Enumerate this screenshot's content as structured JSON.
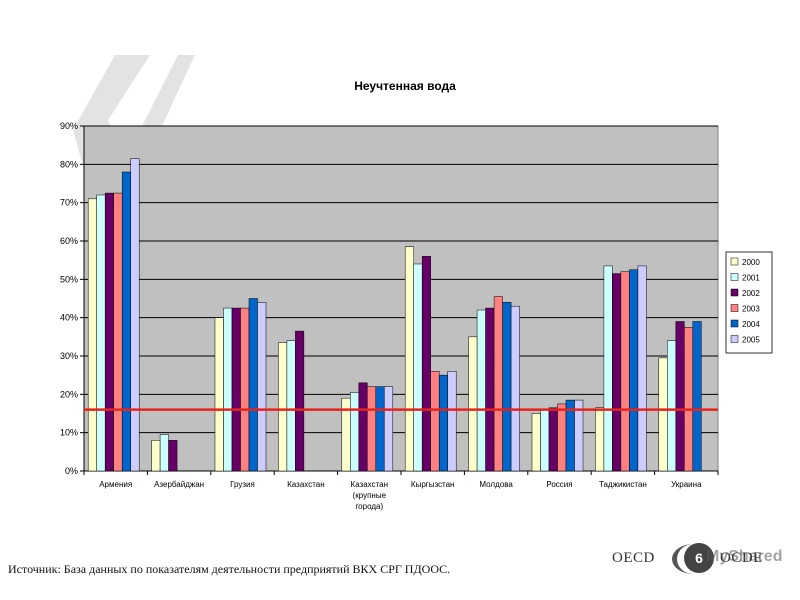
{
  "colors": {
    "plot_bg": "#c0c0c0",
    "gridline": "#000000",
    "threshold_line": "#e8231c",
    "decor_quote": "#e3e3e3"
  },
  "source_text": "Источник: База данных по показателям деятельности предприятий ВКХ СРГ ПДООС.",
  "footer": {
    "logo_left": "OECD",
    "logo_right": "OCDE",
    "page_number": "6",
    "watermark": "MyShared"
  },
  "chart_data": {
    "type": "bar",
    "title": "Неучтенная вода",
    "xlabel": "",
    "ylabel": "",
    "ylim": [
      0,
      90
    ],
    "y_ticks": [
      "0%",
      "10%",
      "20%",
      "30%",
      "40%",
      "50%",
      "60%",
      "70%",
      "80%",
      "90%"
    ],
    "grid": true,
    "legend_position": "right",
    "categories": [
      [
        "Армения"
      ],
      [
        "Азербайджан"
      ],
      [
        "Грузия"
      ],
      [
        "Казахстан"
      ],
      [
        "Казахстан",
        "(крупные",
        "города)"
      ],
      [
        "Кыргызстан"
      ],
      [
        "Молдова"
      ],
      [
        "Россия"
      ],
      [
        "Таджикистан"
      ],
      [
        "Украина"
      ]
    ],
    "series": [
      {
        "name": "2000",
        "color": "#ffffcc",
        "values": [
          71,
          8,
          40,
          33.5,
          19,
          58.5,
          35,
          15,
          16.5,
          29.5
        ]
      },
      {
        "name": "2001",
        "color": "#ccffff",
        "values": [
          72,
          9.5,
          42.5,
          34,
          20.5,
          54,
          42,
          16,
          53.5,
          34
        ]
      },
      {
        "name": "2002",
        "color": "#660066",
        "values": [
          72.5,
          8,
          42.5,
          36.5,
          23,
          56,
          42.5,
          16.5,
          51.5,
          39
        ]
      },
      {
        "name": "2003",
        "color": "#ff8080",
        "values": [
          72.5,
          null,
          42.5,
          null,
          22,
          26,
          45.5,
          17.5,
          52,
          37.5
        ]
      },
      {
        "name": "2004",
        "color": "#0066cc",
        "values": [
          78,
          null,
          45,
          null,
          22,
          25,
          44,
          18.5,
          52.5,
          39
        ]
      },
      {
        "name": "2005",
        "color": "#ccccff",
        "values": [
          81.5,
          null,
          44,
          null,
          22,
          26,
          43,
          18.5,
          53.5,
          null
        ]
      }
    ],
    "reference_line": 16
  }
}
